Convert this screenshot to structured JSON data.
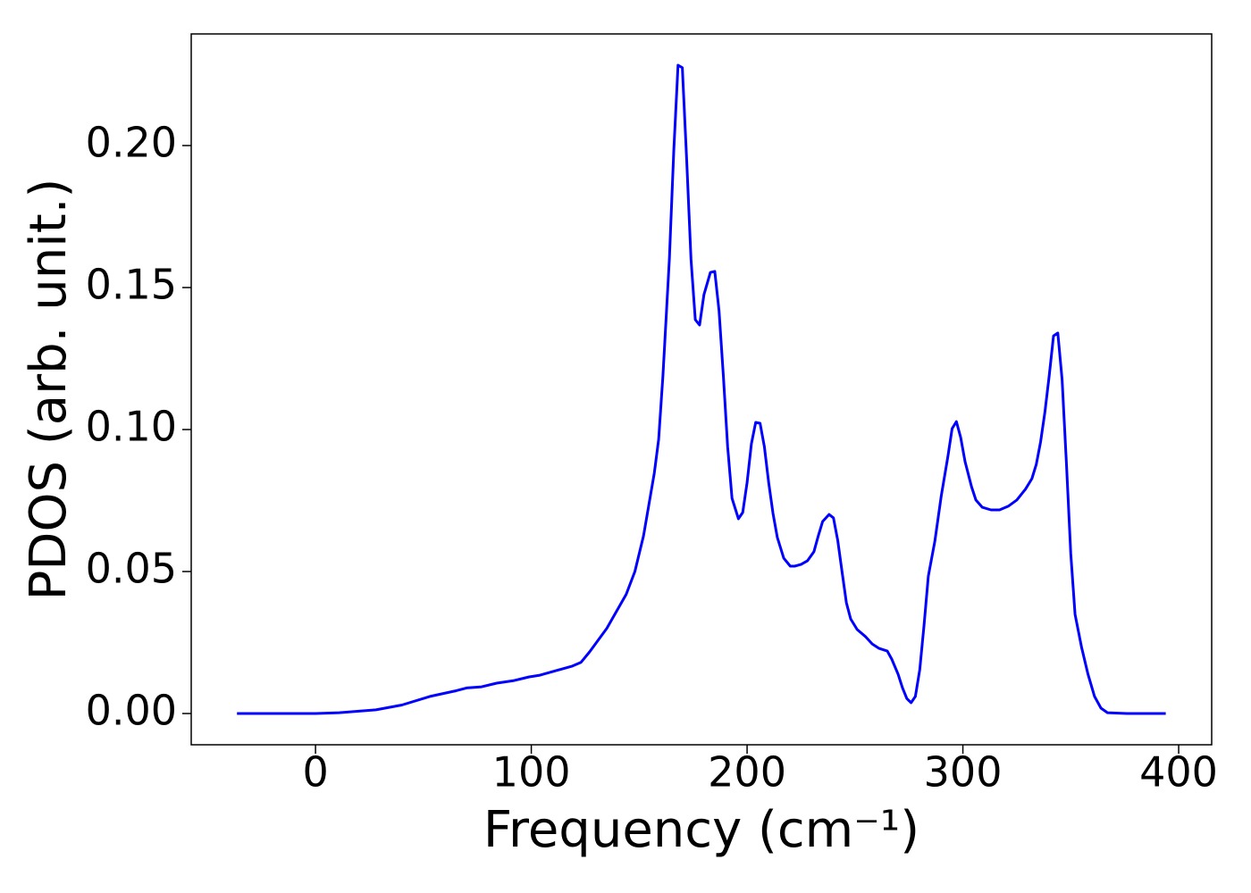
{
  "chart_data": {
    "type": "line",
    "x_label": "Frequency (cm⁻¹)",
    "y_label": "PDOS (arb. unit.)",
    "x": [
      -36.4,
      0,
      11,
      28,
      40,
      53,
      65,
      70,
      77,
      84,
      92,
      99,
      104,
      111,
      119,
      123,
      127,
      135,
      144,
      148,
      152,
      157,
      159,
      161,
      164,
      166,
      168,
      170,
      172,
      174,
      176,
      178,
      180,
      183,
      185,
      187,
      189,
      191,
      193,
      196,
      198,
      200,
      202,
      204,
      206,
      208,
      210,
      212,
      214,
      217,
      220,
      222,
      225,
      228,
      231,
      233,
      235,
      238,
      240,
      242,
      244,
      246,
      248,
      251,
      255,
      258,
      261,
      265,
      267,
      270,
      272,
      274,
      276,
      278,
      280,
      282,
      284,
      287,
      290,
      293,
      295,
      297,
      299,
      301,
      304,
      306,
      309,
      313,
      317,
      321,
      325,
      329,
      332,
      334,
      336,
      338,
      340,
      342,
      344,
      346,
      348,
      350,
      352,
      355,
      358,
      361,
      364,
      367,
      376,
      394
    ],
    "series": [
      {
        "color": "#0000ff",
        "values": [
          0,
          0,
          0.0003,
          0.0013,
          0.003,
          0.006,
          0.008,
          0.009,
          0.0094,
          0.0107,
          0.0116,
          0.0129,
          0.0135,
          0.015,
          0.0167,
          0.018,
          0.0217,
          0.03,
          0.042,
          0.05,
          0.0626,
          0.0846,
          0.0965,
          0.119,
          0.16,
          0.198,
          0.2283,
          0.2274,
          0.1947,
          0.16,
          0.1387,
          0.1368,
          0.1475,
          0.1553,
          0.1557,
          0.1418,
          0.119,
          0.094,
          0.0758,
          0.0686,
          0.0708,
          0.0814,
          0.095,
          0.1025,
          0.1022,
          0.094,
          0.0814,
          0.0704,
          0.062,
          0.0547,
          0.0519,
          0.0519,
          0.0525,
          0.0538,
          0.057,
          0.0626,
          0.0676,
          0.0701,
          0.0689,
          0.061,
          0.05,
          0.039,
          0.0333,
          0.0296,
          0.027,
          0.0245,
          0.023,
          0.022,
          0.0192,
          0.0138,
          0.0091,
          0.0053,
          0.0038,
          0.006,
          0.0154,
          0.0311,
          0.0484,
          0.0607,
          0.0767,
          0.0903,
          0.1003,
          0.1028,
          0.0972,
          0.0887,
          0.0799,
          0.0752,
          0.0726,
          0.0717,
          0.0717,
          0.073,
          0.0752,
          0.079,
          0.0827,
          0.0877,
          0.0956,
          0.106,
          0.119,
          0.133,
          0.134,
          0.1176,
          0.0877,
          0.0563,
          0.0349,
          0.0233,
          0.0138,
          0.006,
          0.0019,
          0.0003,
          0,
          0
        ]
      }
    ],
    "xlim": [
      -57.6,
      415.3
    ],
    "ylim": [
      -0.011,
      0.2393
    ],
    "xticks": [
      0,
      100,
      200,
      300,
      400
    ],
    "yticks": [
      {
        "value": 0,
        "label": "0.00"
      },
      {
        "value": 0.05,
        "label": "0.05"
      },
      {
        "value": 0.1,
        "label": "0.10"
      },
      {
        "value": 0.15,
        "label": "0.15"
      },
      {
        "value": 0.2,
        "label": "0.20"
      }
    ]
  }
}
